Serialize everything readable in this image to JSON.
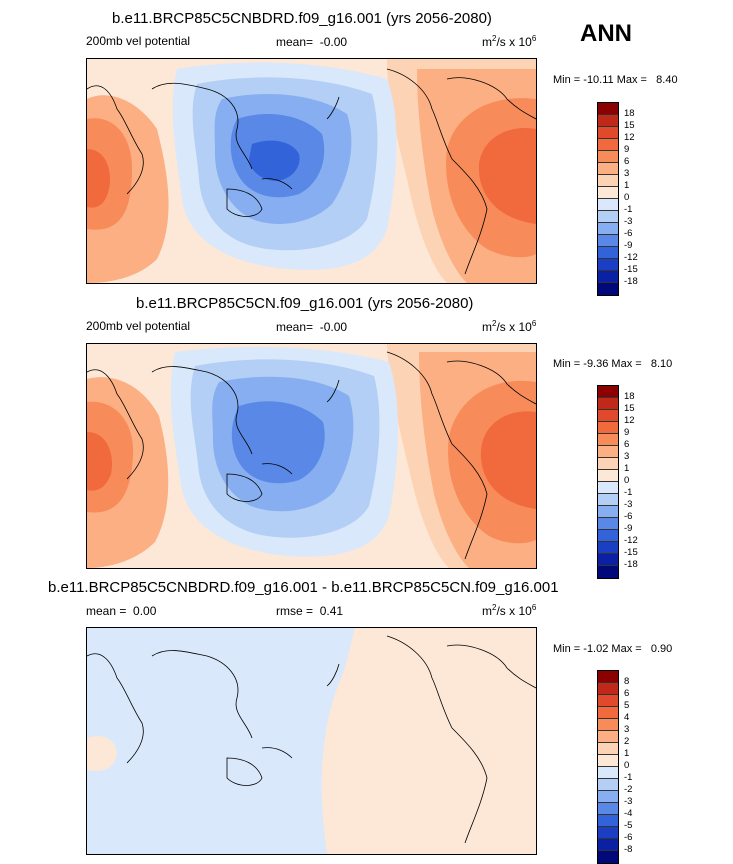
{
  "season_label": "ANN",
  "units_prefix": "m",
  "units_sup1": "2",
  "units_mid": "/s x 10",
  "units_sup2": "6",
  "palette_main": [
    "#8b0000",
    "#c0281a",
    "#e0492c",
    "#f06a3e",
    "#f78c5a",
    "#fbaf82",
    "#fdd3b5",
    "#fde8d8",
    "#d9e8fb",
    "#b3cff5",
    "#86aef0",
    "#5a88e6",
    "#3363d8",
    "#1a3fc4",
    "#0a21a3",
    "#00087a"
  ],
  "chart_data": [
    {
      "type": "heatmap",
      "title": "b.e11.BRCP85C5CNBDRD.f09_g16.001 (yrs 2056-2080)",
      "variable": "200mb vel potential",
      "mean_label": "mean=",
      "mean": "-0.00",
      "min_label": "Min =",
      "min": "-10.11",
      "max_label": "Max =",
      "max": "8.40",
      "levels": [
        "18",
        "15",
        "12",
        "9",
        "6",
        "3",
        "1",
        "0",
        "-1",
        "-3",
        "-6",
        "-9",
        "-12",
        "-15",
        "-18"
      ]
    },
    {
      "type": "heatmap",
      "title": "b.e11.BRCP85C5CN.f09_g16.001 (yrs 2056-2080)",
      "variable": "200mb vel potential",
      "mean_label": "mean=",
      "mean": "-0.00",
      "min_label": "Min =",
      "min": "-9.36",
      "max_label": "Max =",
      "max": "8.10",
      "levels": [
        "18",
        "15",
        "12",
        "9",
        "6",
        "3",
        "1",
        "0",
        "-1",
        "-3",
        "-6",
        "-9",
        "-12",
        "-15",
        "-18"
      ]
    },
    {
      "type": "heatmap",
      "title": "b.e11.BRCP85C5CNBDRD.f09_g16.001 - b.e11.BRCP85C5CN.f09_g16.001",
      "mean_label": "mean =",
      "mean": "0.00",
      "rmse_label": "rmse =",
      "rmse": "0.41",
      "min_label": "Min =",
      "min": "-1.02",
      "max_label": "Max =",
      "max": "0.90",
      "levels": [
        "8",
        "6",
        "5",
        "4",
        "3",
        "2",
        "1",
        "0",
        "-1",
        "-2",
        "-3",
        "-4",
        "-5",
        "-6",
        "-8"
      ]
    }
  ]
}
